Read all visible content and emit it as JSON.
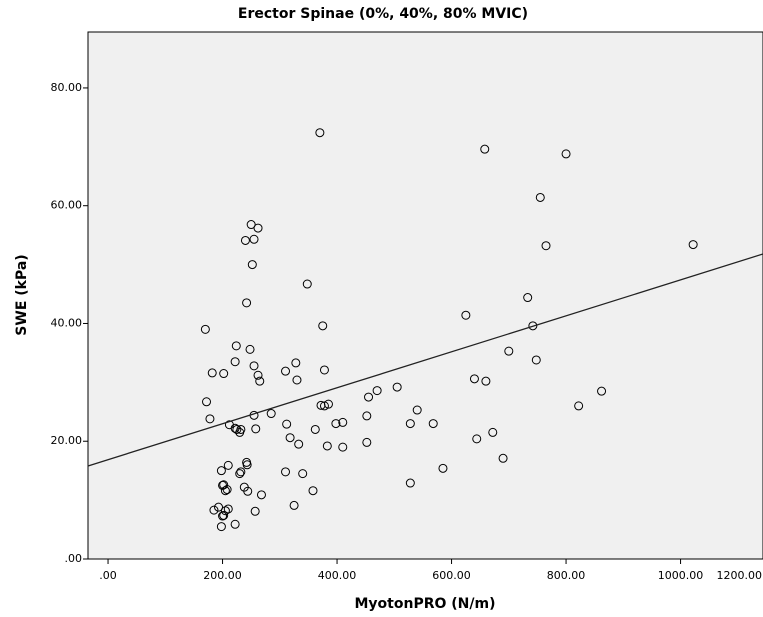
{
  "chart_data": {
    "type": "scatter",
    "title": "Erector Spinae (0%, 40%, 80% MVIC)",
    "x_label": "MyotonPRO (N/m)",
    "y_label": "SWE (kPa)",
    "marker_color": "#000000",
    "background": "#f0f0f0",
    "line_color": "#222222",
    "x": [
      370,
      658,
      800,
      755,
      250,
      262,
      240,
      255,
      765,
      1022,
      252,
      242,
      348,
      733,
      170,
      742,
      375,
      625,
      224,
      248,
      328,
      222,
      255,
      700,
      748,
      262,
      310,
      640,
      660,
      378,
      265,
      330,
      470,
      385,
      372,
      378,
      362,
      178,
      505,
      182,
      285,
      202,
      455,
      540,
      255,
      452,
      312,
      225,
      230,
      212,
      232,
      410,
      258,
      398,
      318,
      333,
      452,
      568,
      644,
      672,
      528,
      822,
      862,
      690,
      242,
      243,
      232,
      210,
      230,
      198,
      238,
      244,
      208,
      340,
      310,
      383,
      410,
      358,
      585,
      268,
      200,
      202,
      222,
      205,
      325,
      528,
      185,
      200,
      193,
      205,
      202,
      210,
      257,
      222,
      198,
      172
    ],
    "values": [
      72.4,
      69.6,
      68.8,
      61.4,
      56.8,
      56.2,
      54.1,
      54.3,
      53.2,
      53.4,
      50.0,
      43.5,
      46.7,
      44.4,
      39.0,
      39.6,
      39.6,
      41.4,
      36.2,
      35.6,
      33.3,
      33.5,
      32.8,
      35.3,
      33.8,
      31.2,
      31.9,
      30.6,
      30.2,
      32.1,
      30.2,
      30.4,
      28.6,
      26.3,
      26.1,
      26.0,
      22.0,
      23.8,
      29.2,
      31.6,
      24.7,
      31.5,
      27.5,
      25.3,
      24.4,
      24.3,
      22.9,
      22.0,
      21.5,
      22.8,
      22.0,
      23.2,
      22.1,
      23.0,
      20.6,
      19.5,
      19.8,
      23.0,
      20.4,
      21.5,
      23.0,
      26.0,
      28.5,
      17.1,
      16.4,
      16.0,
      14.8,
      15.9,
      14.5,
      15.0,
      12.2,
      11.5,
      11.8,
      14.5,
      14.8,
      19.2,
      19.0,
      11.6,
      15.4,
      10.9,
      12.5,
      12.6,
      22.2,
      11.6,
      9.1,
      12.9,
      8.3,
      7.3,
      8.8,
      8.2,
      7.4,
      8.5,
      8.1,
      5.9,
      5.5,
      26.7
    ],
    "fit_line": {
      "x": [
        -35,
        1144
      ],
      "values": [
        15.8,
        51.8
      ]
    },
    "xlim": [
      -35,
      1144
    ],
    "ylim": [
      0,
      89.5
    ],
    "xticks": [
      {
        "value": 0,
        "label": ".00"
      },
      {
        "value": 200,
        "label": "200.00"
      },
      {
        "value": 400,
        "label": "400.00"
      },
      {
        "value": 600,
        "label": "600.00"
      },
      {
        "value": 800,
        "label": "800.00"
      },
      {
        "value": 1000,
        "label": "1000.00"
      },
      {
        "value": 1200,
        "label": "1200.00"
      }
    ],
    "yticks": [
      {
        "value": 0,
        "label": ".00"
      },
      {
        "value": 20,
        "label": "20.00"
      },
      {
        "value": 40,
        "label": "40.00"
      },
      {
        "value": 60,
        "label": "60.00"
      },
      {
        "value": 80,
        "label": "80.00"
      }
    ]
  }
}
